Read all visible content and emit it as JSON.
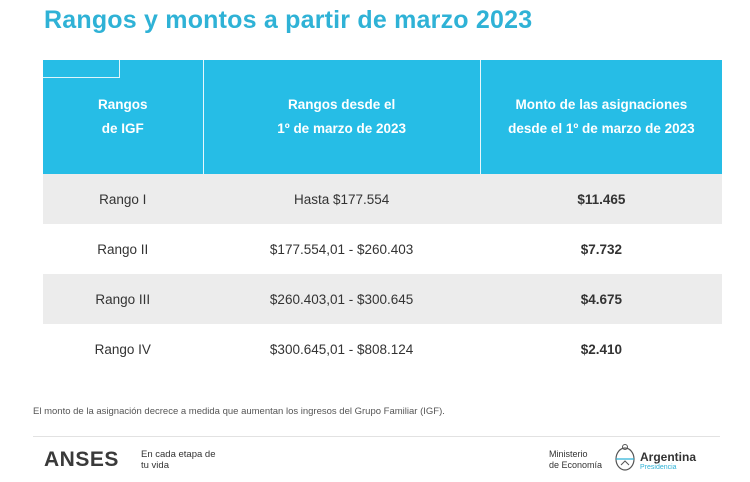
{
  "title": "Rangos y montos a partir de marzo 2023",
  "table": {
    "headers": [
      "Rangos\nde IGF",
      "Rangos desde el\n1º de marzo de 2023",
      "Monto de las asignaciones\ndesde el 1º de marzo de 2023"
    ],
    "rows": [
      {
        "rango": "Rango I",
        "desde": "Hasta $177.554",
        "monto": "$11.465"
      },
      {
        "rango": "Rango II",
        "desde": "$177.554,01 - $260.403",
        "monto": "$7.732"
      },
      {
        "rango": "Rango III",
        "desde": "$260.403,01 - $300.645",
        "monto": "$4.675"
      },
      {
        "rango": "Rango IV",
        "desde": "$300.645,01 - $808.124",
        "monto": "$2.410"
      }
    ]
  },
  "footnote": "El monto de la asignación decrece a medida que aumentan los ingresos del Grupo Familiar (IGF).",
  "footer": {
    "brand": "ANSES",
    "tagline": "En cada etapa de tu vida",
    "ministry_line1": "Ministerio",
    "ministry_line2": "de Economía",
    "country": "Argentina",
    "presidencia": "Presidencia"
  },
  "colors": {
    "accent": "#26bde6",
    "title": "#2fb2d6",
    "row_alt": "#ececec"
  }
}
